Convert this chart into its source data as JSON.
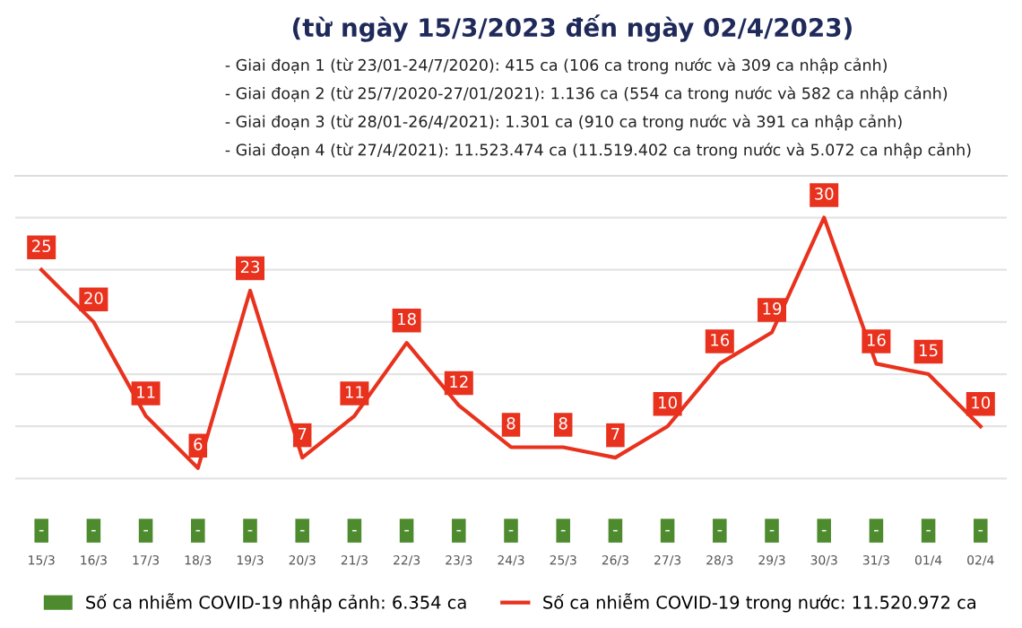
{
  "chart_data": {
    "type": "line",
    "title": "(từ ngày 15/3/2023 đến ngày 02/4/2023)",
    "annotations": [
      "- Giai đoạn 1 (từ 23/01-24/7/2020): 415 ca (106 ca trong nước và 309 ca nhập cảnh)",
      "- Giai đoạn 2 (từ 25/7/2020-27/01/2021): 1.136 ca (554 ca trong nước và 582 ca nhập cảnh)",
      "- Giai đoạn 3 (từ 28/01-26/4/2021): 1.301 ca (910 ca trong nước và 391 ca nhập cảnh)",
      "- Giai đoạn 4 (từ 27/4/2021): 11.523.474 ca (11.519.402 ca trong nước và 5.072 ca nhập cảnh)"
    ],
    "categories": [
      "15/3",
      "16/3",
      "17/3",
      "18/3",
      "19/3",
      "20/3",
      "21/3",
      "22/3",
      "23/3",
      "24/3",
      "25/3",
      "26/3",
      "27/3",
      "28/3",
      "29/3",
      "30/3",
      "31/3",
      "01/4",
      "02/4"
    ],
    "series": [
      {
        "name": "Số ca nhiễm COVID-19 nhập cảnh: 6.354 ca",
        "type": "bar",
        "color": "#4e8b2e",
        "values": [
          0,
          0,
          0,
          0,
          0,
          0,
          0,
          0,
          0,
          0,
          0,
          0,
          0,
          0,
          0,
          0,
          0,
          0,
          0
        ],
        "value_labels": [
          "-",
          "-",
          "-",
          "-",
          "-",
          "-",
          "-",
          "-",
          "-",
          "-",
          "-",
          "-",
          "-",
          "-",
          "-",
          "-",
          "-",
          "-",
          "-"
        ]
      },
      {
        "name": "Số ca nhiễm COVID-19 trong nước: 11.520.972 ca",
        "color": "#e8321e",
        "values": [
          25,
          20,
          11,
          6,
          23,
          7,
          11,
          18,
          12,
          8,
          8,
          7,
          10,
          16,
          19,
          30,
          16,
          15,
          10
        ],
        "value_labels": [
          "25",
          "20",
          "11",
          "6",
          "23",
          "7",
          "11",
          "18",
          "12",
          "8",
          "8",
          "7",
          "10",
          "16",
          "19",
          "30",
          "16",
          "15",
          "10"
        ]
      }
    ],
    "ylim": [
      -1.5,
      34
    ],
    "yticks": [
      {
        "value": 5,
        "label": null
      },
      {
        "value": 10,
        "label": null
      },
      {
        "value": 15,
        "label": null
      },
      {
        "value": 20,
        "label": null
      },
      {
        "value": 25,
        "label": null
      },
      {
        "value": 30,
        "label": null
      }
    ],
    "tick_labels": "x",
    "grid": "y",
    "legend": "bottom",
    "marker": "none",
    "line_style": "solid"
  }
}
